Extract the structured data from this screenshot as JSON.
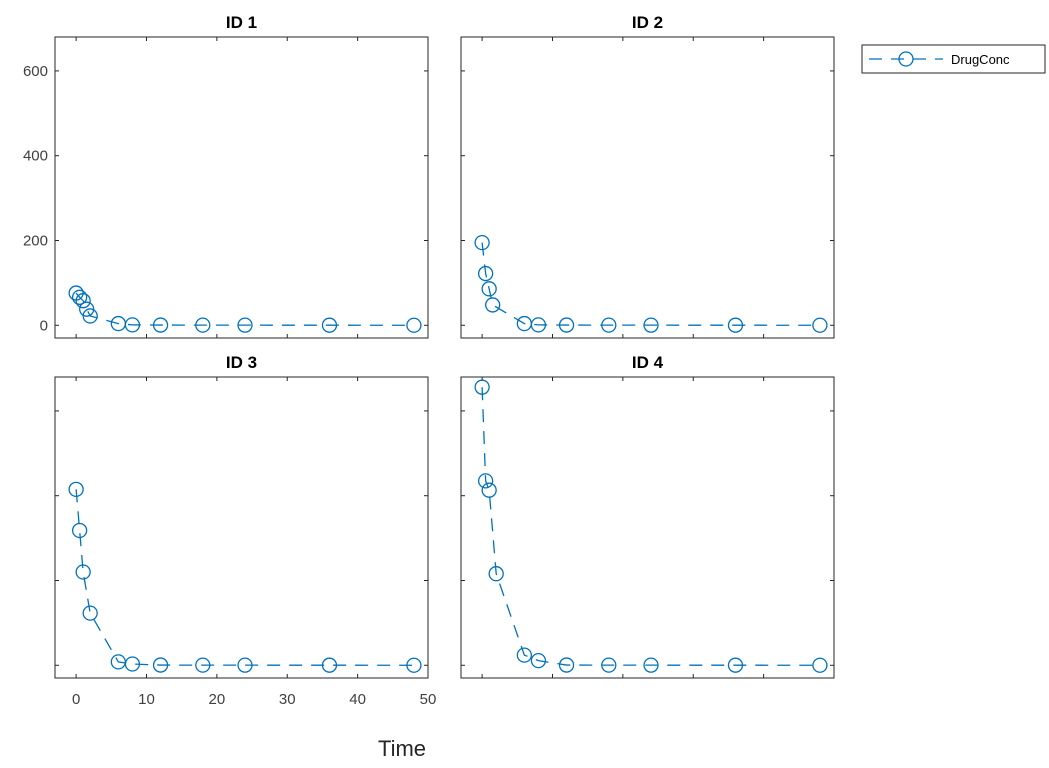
{
  "chart_data": [
    {
      "type": "line",
      "title": "ID 1",
      "xlabel": "",
      "ylabel": "",
      "xlim": [
        -3,
        50
      ],
      "ylim": [
        -30,
        680
      ],
      "yticks": [
        0,
        200,
        400,
        600
      ],
      "series": [
        {
          "name": "DrugConc",
          "x": [
            0,
            0.5,
            1,
            1.5,
            2,
            6,
            8,
            12,
            18,
            24,
            36,
            48
          ],
          "y": [
            76,
            66,
            58,
            38,
            22,
            4,
            1,
            0.5,
            0.4,
            0.3,
            0.2,
            0.1
          ]
        }
      ]
    },
    {
      "type": "line",
      "title": "ID 2",
      "xlim": [
        -3,
        50
      ],
      "ylim": [
        -30,
        680
      ],
      "series": [
        {
          "name": "DrugConc",
          "x": [
            0,
            0.5,
            1,
            1.5,
            6,
            8,
            12,
            18,
            24,
            36,
            48
          ],
          "y": [
            195,
            122,
            86,
            48,
            4,
            1,
            0.5,
            0.4,
            0.3,
            0.2,
            0.1
          ]
        }
      ]
    },
    {
      "type": "line",
      "title": "ID 3",
      "xlabel": "Time",
      "xlim": [
        -3,
        50
      ],
      "ylim": [
        -30,
        680
      ],
      "xticks": [
        0,
        10,
        20,
        30,
        40,
        50
      ],
      "series": [
        {
          "name": "DrugConc",
          "x": [
            0,
            0.5,
            1,
            2,
            6,
            8,
            12,
            18,
            24,
            36,
            48
          ],
          "y": [
            415,
            318,
            220,
            123,
            8,
            3,
            0.5,
            0.4,
            0.3,
            0.2,
            0.1
          ]
        }
      ]
    },
    {
      "type": "line",
      "title": "ID 4",
      "xlim": [
        -3,
        50
      ],
      "ylim": [
        -30,
        680
      ],
      "series": [
        {
          "name": "DrugConc",
          "x": [
            0,
            0.5,
            1,
            2,
            6,
            8,
            12,
            18,
            24,
            36,
            48
          ],
          "y": [
            656,
            435,
            413,
            216,
            24,
            11,
            0.5,
            0.4,
            0.3,
            0.2,
            0.1
          ]
        }
      ]
    }
  ],
  "legend": {
    "label": "DrugConc",
    "position": "top-right",
    "color": "#0072BD"
  },
  "style": {
    "series_color": "#0072BD",
    "axis_color": "#262626",
    "grid": false
  }
}
